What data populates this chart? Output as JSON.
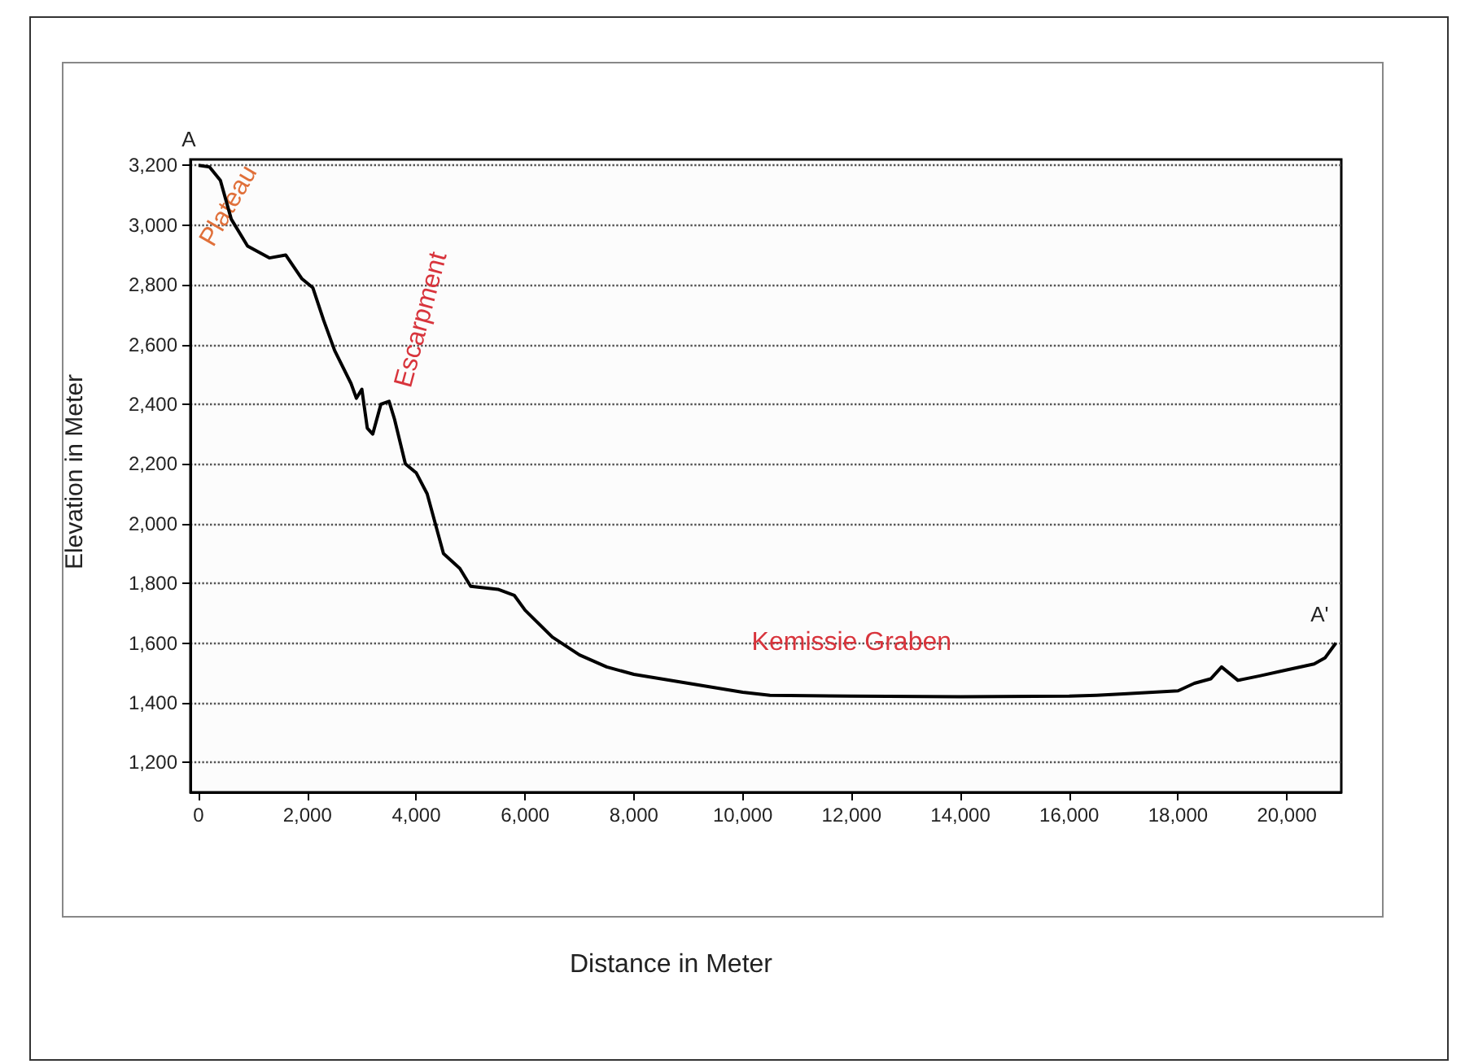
{
  "chart_data": {
    "type": "line",
    "xlabel": "Distance in Meter",
    "ylabel": "Elevation in Meter",
    "x": [
      0,
      200,
      400,
      600,
      900,
      1100,
      1300,
      1600,
      1900,
      2100,
      2300,
      2500,
      2800,
      2900,
      3000,
      3100,
      3200,
      3350,
      3500,
      3600,
      3800,
      4000,
      4200,
      4500,
      4800,
      5000,
      5500,
      5800,
      6000,
      6500,
      7000,
      7500,
      8000,
      9000,
      10000,
      10500,
      12000,
      14000,
      16000,
      16500,
      17000,
      18000,
      18300,
      18600,
      18800,
      19100,
      19500,
      20000,
      20500,
      20700,
      20900
    ],
    "series": [
      {
        "color": "#000000",
        "values": [
          3200,
          3195,
          3150,
          3020,
          2930,
          2910,
          2890,
          2900,
          2820,
          2790,
          2680,
          2580,
          2470,
          2420,
          2450,
          2320,
          2300,
          2400,
          2410,
          2350,
          2200,
          2170,
          2100,
          1900,
          1850,
          1790,
          1780,
          1760,
          1710,
          1620,
          1560,
          1520,
          1495,
          1465,
          1435,
          1425,
          1422,
          1420,
          1422,
          1425,
          1430,
          1440,
          1465,
          1480,
          1520,
          1475,
          1490,
          1510,
          1530,
          1550,
          1600
        ]
      }
    ],
    "xlim": [
      -150,
      21000
    ],
    "xticks": [
      {
        "value": 0,
        "label": "0"
      },
      {
        "value": 2000,
        "label": "2,000"
      },
      {
        "value": 4000,
        "label": "4,000"
      },
      {
        "value": 6000,
        "label": "6,000"
      },
      {
        "value": 8000,
        "label": "8,000"
      },
      {
        "value": 10000,
        "label": "10,000"
      },
      {
        "value": 12000,
        "label": "12,000"
      },
      {
        "value": 14000,
        "label": "14,000"
      },
      {
        "value": 16000,
        "label": "16,000"
      },
      {
        "value": 18000,
        "label": "18,000"
      },
      {
        "value": 20000,
        "label": "20,000"
      }
    ],
    "ylim": [
      1100,
      3220
    ],
    "yticks": [
      {
        "value": 1200,
        "label": "1,200"
      },
      {
        "value": 1400,
        "label": "1,400"
      },
      {
        "value": 1600,
        "label": "1,600"
      },
      {
        "value": 1800,
        "label": "1,800"
      },
      {
        "value": 2000,
        "label": "2,000"
      },
      {
        "value": 2200,
        "label": "2,200"
      },
      {
        "value": 2400,
        "label": "2,400"
      },
      {
        "value": 2600,
        "label": "2,600"
      },
      {
        "value": 2800,
        "label": "2,800"
      },
      {
        "value": 3000,
        "label": "3,000"
      },
      {
        "value": 3200,
        "label": "3,200"
      }
    ],
    "grid": "y",
    "marker": "none",
    "line_style": "solid",
    "annotations": [
      {
        "text": "A",
        "x": 0,
        "y": 3200
      },
      {
        "text": "Plateau",
        "x": 200,
        "y": 3200
      },
      {
        "text": "Escarpment",
        "x": 3500,
        "y": 2410
      },
      {
        "text": "Kemissie Graben",
        "x": 12000,
        "y": 1422
      },
      {
        "text": "A'",
        "x": 20900,
        "y": 1600
      }
    ]
  }
}
